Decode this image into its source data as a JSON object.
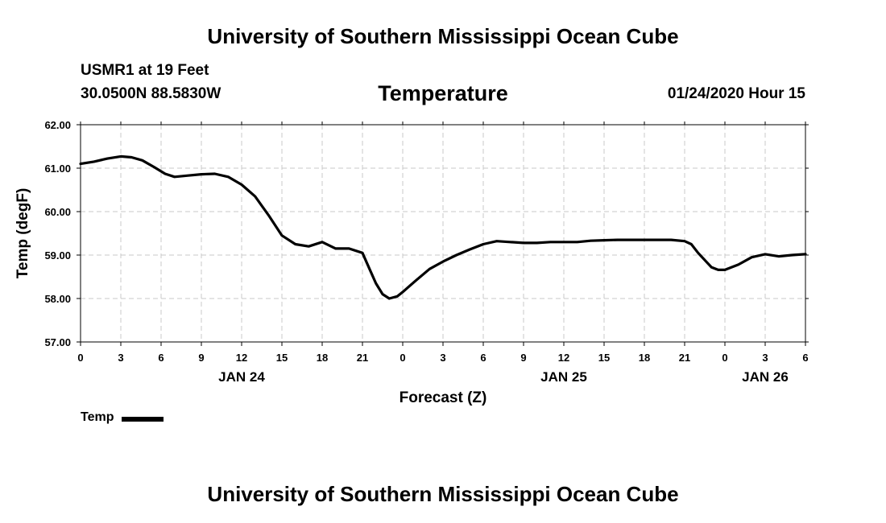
{
  "header": {
    "title": "University of Southern Mississippi Ocean Cube",
    "station": "USMR1 at 19 Feet",
    "coords": "30.0500N 88.5830W",
    "variable": "Temperature",
    "timestamp": "01/24/2020 Hour 15"
  },
  "footer": {
    "title": "University of Southern Mississippi Ocean Cube"
  },
  "legend": {
    "label": "Temp"
  },
  "chart_data": {
    "type": "line",
    "title": "Temperature",
    "xlabel": "Forecast (Z)",
    "ylabel": "Temp (degF)",
    "xlim": [
      0,
      54
    ],
    "ylim": [
      57,
      62
    ],
    "y_ticks": [
      "57.00",
      "58.00",
      "59.00",
      "60.00",
      "61.00",
      "62.00"
    ],
    "x_ticks": [
      {
        "h": 0,
        "label": "0"
      },
      {
        "h": 3,
        "label": "3"
      },
      {
        "h": 6,
        "label": "6"
      },
      {
        "h": 9,
        "label": "9"
      },
      {
        "h": 12,
        "label": "12"
      },
      {
        "h": 15,
        "label": "15"
      },
      {
        "h": 18,
        "label": "18"
      },
      {
        "h": 21,
        "label": "21"
      },
      {
        "h": 24,
        "label": "0"
      },
      {
        "h": 27,
        "label": "3"
      },
      {
        "h": 30,
        "label": "6"
      },
      {
        "h": 33,
        "label": "9"
      },
      {
        "h": 36,
        "label": "12"
      },
      {
        "h": 39,
        "label": "15"
      },
      {
        "h": 42,
        "label": "18"
      },
      {
        "h": 45,
        "label": "21"
      },
      {
        "h": 48,
        "label": "0"
      },
      {
        "h": 51,
        "label": "3"
      },
      {
        "h": 54,
        "label": "6"
      }
    ],
    "date_labels": [
      {
        "h": 12,
        "label": "JAN 24"
      },
      {
        "h": 36,
        "label": "JAN 25"
      },
      {
        "h": 51,
        "label": "JAN 26"
      }
    ],
    "grid": true,
    "series": [
      {
        "name": "Temp",
        "color": "#000000",
        "x": [
          0,
          1,
          2,
          3,
          3.8,
          4.6,
          5.5,
          6.3,
          7,
          8,
          9,
          10,
          11,
          12,
          13,
          14,
          15,
          16,
          17,
          18,
          19,
          20,
          21,
          21.5,
          22,
          22.5,
          23,
          23.6,
          24,
          25,
          26,
          27,
          28,
          29,
          30,
          31,
          32,
          33,
          34,
          35,
          36,
          37,
          38,
          39,
          40,
          41,
          42,
          43,
          44,
          45,
          45.5,
          46,
          46.6,
          47,
          47.5,
          48,
          48.5,
          49,
          50,
          51,
          52,
          53,
          54
        ],
        "values": [
          61.1,
          61.15,
          61.22,
          61.27,
          61.25,
          61.18,
          61.02,
          60.87,
          60.8,
          60.83,
          60.86,
          60.87,
          60.8,
          60.62,
          60.35,
          59.92,
          59.45,
          59.25,
          59.2,
          59.3,
          59.15,
          59.15,
          59.05,
          58.7,
          58.35,
          58.1,
          58.0,
          58.05,
          58.15,
          58.42,
          58.68,
          58.85,
          59.0,
          59.13,
          59.25,
          59.32,
          59.3,
          59.28,
          59.28,
          59.3,
          59.3,
          59.3,
          59.33,
          59.34,
          59.35,
          59.35,
          59.35,
          59.35,
          59.35,
          59.32,
          59.25,
          59.05,
          58.85,
          58.72,
          58.66,
          58.66,
          58.72,
          58.78,
          58.95,
          59.02,
          58.97,
          59.0,
          59.02
        ]
      }
    ]
  }
}
